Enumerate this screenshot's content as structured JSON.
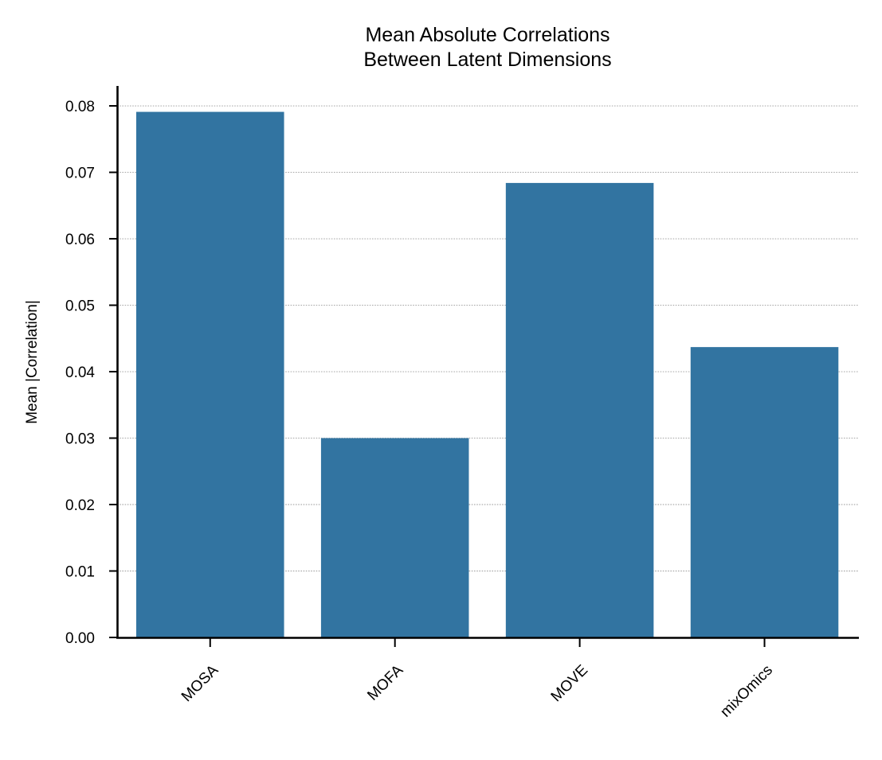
{
  "chart_data": {
    "type": "bar",
    "title": [
      "Mean Absolute Correlations",
      "Between Latent Dimensions"
    ],
    "xlabel": "",
    "ylabel": "Mean |Correlation|",
    "categories": [
      "MOSA",
      "MOFA",
      "MOVE",
      "mixOmics"
    ],
    "values": [
      0.0791,
      0.03,
      0.0684,
      0.0437
    ],
    "ylim": [
      0,
      0.083
    ],
    "yticks": [
      0.0,
      0.01,
      0.02,
      0.03,
      0.04,
      0.05,
      0.06,
      0.07,
      0.08
    ],
    "ytick_labels": [
      "0.00",
      "0.01",
      "0.02",
      "0.03",
      "0.04",
      "0.05",
      "0.06",
      "0.07",
      "0.08"
    ],
    "grid": "horizontal dotted",
    "bar_color": "#3274a1"
  }
}
